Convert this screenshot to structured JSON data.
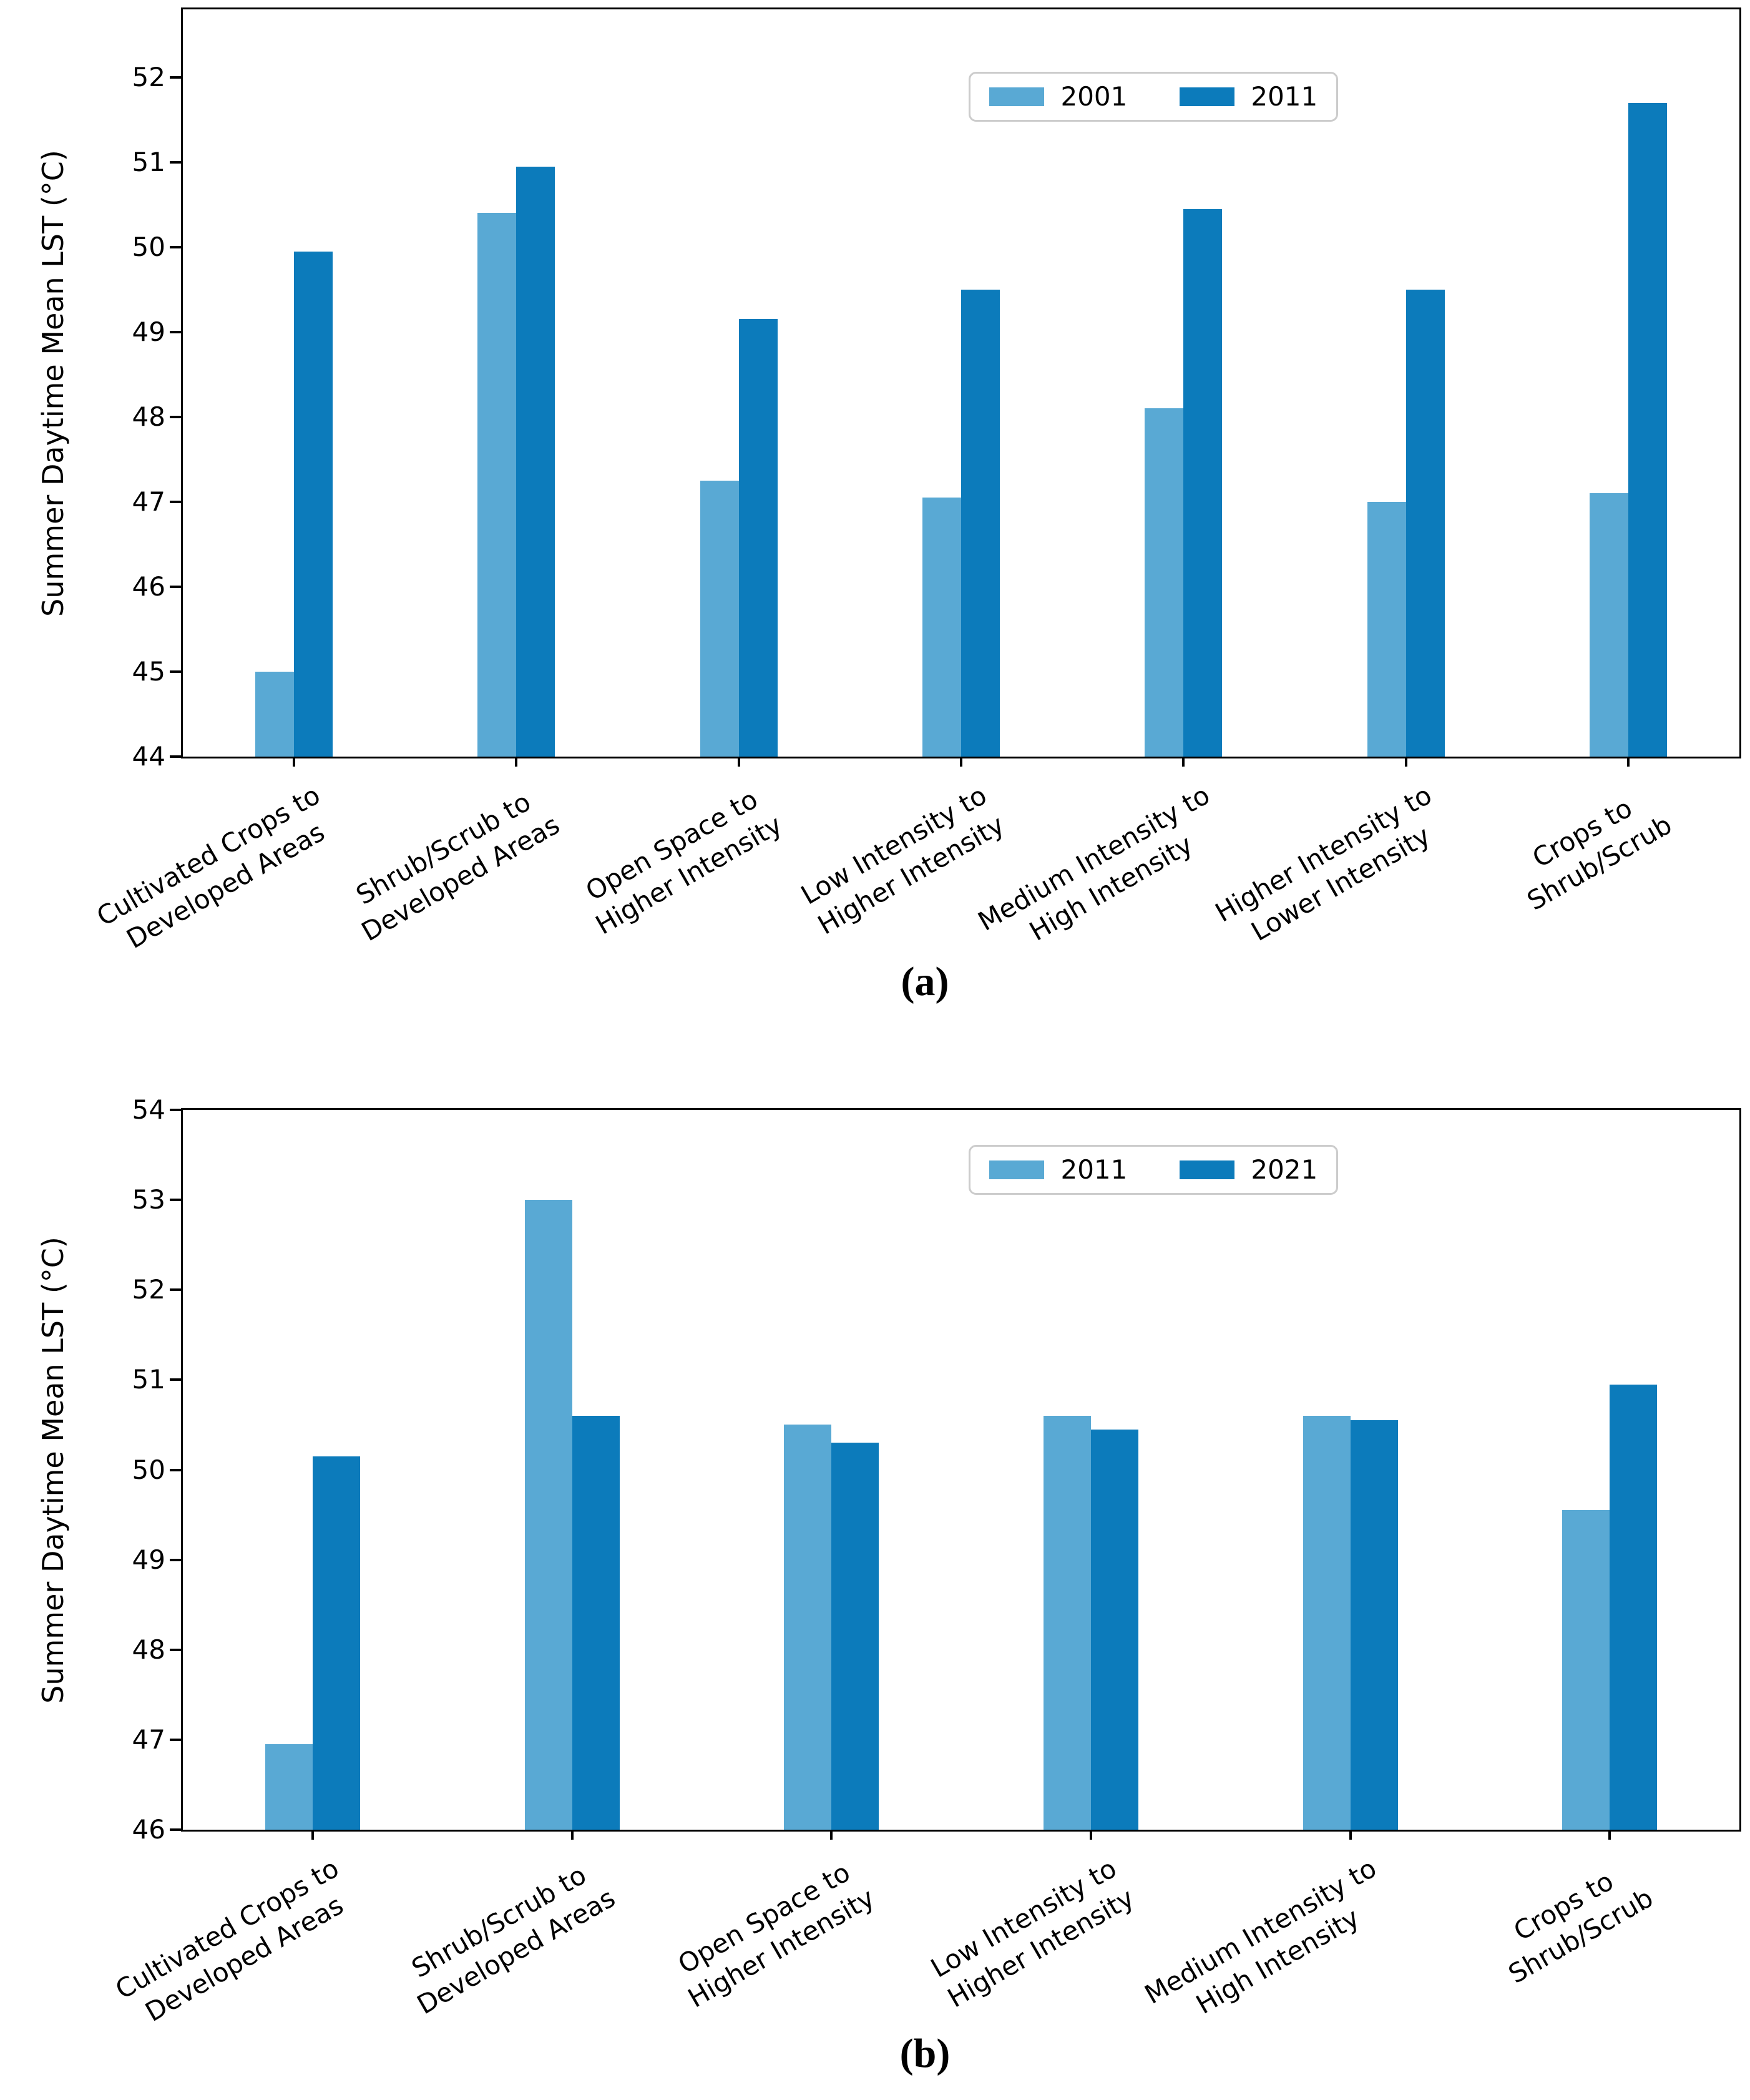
{
  "figure": {
    "captions": [
      "(a)",
      "(b)"
    ]
  },
  "colors": {
    "series1": "#59A9D4",
    "series2": "#0C7BBB",
    "legend_border": "#cccccc",
    "axis": "#000000"
  },
  "chart_data": [
    {
      "type": "bar",
      "title": "",
      "xlabel": "",
      "ylabel": "Summer Daytime Mean LST (°C)",
      "ylim": [
        44,
        52.8
      ],
      "yticks": [
        44,
        45,
        46,
        47,
        48,
        49,
        50,
        51,
        52
      ],
      "grid": false,
      "legend_position": "upper center-right",
      "categories": [
        "Cultivated Crops to\nDeveloped Areas",
        "Shrub/Scrub to\nDeveloped Areas",
        "Open Space to\nHigher Intensity",
        "Low Intensity to\nHigher Intensity",
        "Medium Intensity to\nHigh Intensity",
        "Higher Intensity to\nLower Intensity",
        "Crops to\nShrub/Scrub"
      ],
      "series": [
        {
          "name": "2001",
          "values": [
            45.0,
            50.4,
            47.25,
            47.05,
            48.1,
            47.0,
            47.1
          ]
        },
        {
          "name": "2011",
          "values": [
            49.95,
            50.95,
            49.15,
            49.5,
            50.45,
            49.5,
            51.7
          ]
        }
      ]
    },
    {
      "type": "bar",
      "title": "",
      "xlabel": "",
      "ylabel": "Summer Daytime Mean LST (°C)",
      "ylim": [
        46,
        54
      ],
      "yticks": [
        46,
        47,
        48,
        49,
        50,
        51,
        52,
        53,
        54
      ],
      "grid": false,
      "legend_position": "upper center-right",
      "categories": [
        "Cultivated Crops to\nDeveloped Areas",
        "Shrub/Scrub to\nDeveloped Areas",
        "Open Space to\nHigher Intensity",
        "Low Intensity to\nHigher Intensity",
        "Medium Intensity to\nHigh Intensity",
        "Crops to\nShrub/Scrub"
      ],
      "series": [
        {
          "name": "2011",
          "values": [
            46.95,
            53.0,
            50.5,
            50.6,
            50.6,
            49.55
          ]
        },
        {
          "name": "2021",
          "values": [
            50.15,
            50.6,
            50.3,
            50.45,
            50.55,
            50.95
          ]
        }
      ]
    }
  ]
}
